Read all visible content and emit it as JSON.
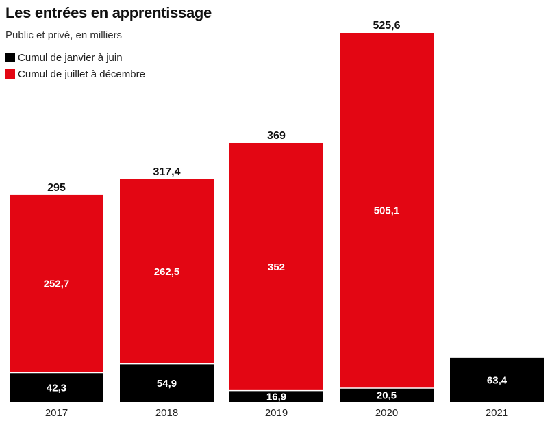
{
  "title": "Les entrées en apprentissage",
  "subtitle": "Public et privé, en milliers",
  "colors": {
    "first_half": "#000000",
    "second_half": "#e30613"
  },
  "legend": [
    {
      "label": "Cumul de janvier à juin",
      "color": "#000000"
    },
    {
      "label": "Cumul de juillet à décembre",
      "color": "#e30613"
    }
  ],
  "chart_data": {
    "type": "bar",
    "stacked": true,
    "categories": [
      "2017",
      "2018",
      "2019",
      "2020",
      "2021"
    ],
    "series": [
      {
        "name": "Cumul de janvier à juin",
        "values": [
          42.3,
          54.9,
          16.9,
          20.5,
          63.4
        ],
        "labels": [
          "42,3",
          "54,9",
          "16,9",
          "20,5",
          "63,4"
        ]
      },
      {
        "name": "Cumul de juillet à décembre",
        "values": [
          252.7,
          262.5,
          352,
          505.1,
          null
        ],
        "labels": [
          "252,7",
          "262,5",
          "352",
          "505,1",
          ""
        ]
      }
    ],
    "totals": [
      295,
      317.4,
      369,
      525.6,
      null
    ],
    "total_labels": [
      "295",
      "317,4",
      "369",
      "525,6",
      ""
    ],
    "title": "Les entrées en apprentissage",
    "subtitle": "Public et privé, en milliers",
    "xlabel": "",
    "ylabel": "",
    "grid": false,
    "legend_position": "top-left"
  }
}
